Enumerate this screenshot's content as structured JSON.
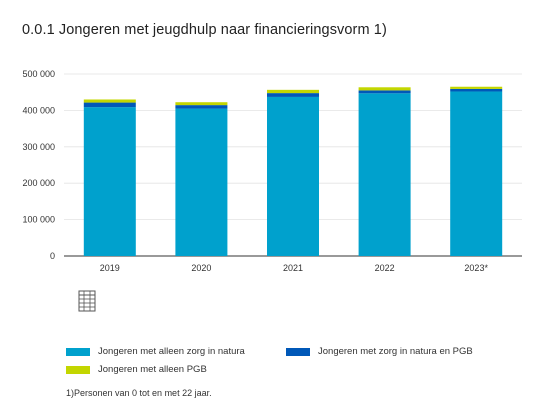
{
  "page": {
    "title": "0.0.1 Jongeren met jeugdhulp naar financieringsvorm 1)",
    "footnote": "1)Personen van 0 tot en met 22 jaar."
  },
  "icons": {
    "table": "table-icon"
  },
  "chart_data": {
    "type": "bar",
    "stacked": true,
    "categories": [
      "2019",
      "2020",
      "2021",
      "2022",
      "2023*"
    ],
    "series": [
      {
        "name": "Jongeren met alleen zorg in natura",
        "color": "#00a1cd",
        "values": [
          409000,
          405000,
          437000,
          447000,
          452000
        ]
      },
      {
        "name": "Jongeren met zorg in natura en PGB",
        "color": "#0058b8",
        "values": [
          12500,
          9500,
          10500,
          8000,
          7000
        ]
      },
      {
        "name": "Jongeren met alleen PGB",
        "color": "#c3d600",
        "values": [
          8500,
          8000,
          9000,
          8500,
          6000
        ]
      }
    ],
    "ylim": [
      0,
      500000
    ],
    "yticks": [
      0,
      100000,
      200000,
      300000,
      400000,
      500000
    ],
    "ytick_labels": [
      "0",
      "100 000",
      "200 000",
      "300 000",
      "400 000",
      "500 000"
    ],
    "grid": true,
    "legend_position": "bottom"
  }
}
